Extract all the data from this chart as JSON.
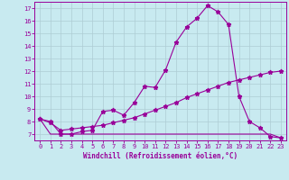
{
  "xlabel": "Windchill (Refroidissement éolien,°C)",
  "bg_color": "#c8eaf0",
  "grid_color": "#aeccd4",
  "line_color": "#990099",
  "xlim": [
    -0.5,
    23.5
  ],
  "ylim": [
    6.5,
    17.5
  ],
  "xticks": [
    0,
    1,
    2,
    3,
    4,
    5,
    6,
    7,
    8,
    9,
    10,
    11,
    12,
    13,
    14,
    15,
    16,
    17,
    18,
    19,
    20,
    21,
    22,
    23
  ],
  "yticks": [
    7,
    8,
    9,
    10,
    11,
    12,
    13,
    14,
    15,
    16,
    17
  ],
  "series1_x": [
    0,
    1,
    2,
    3,
    4,
    5,
    6,
    7,
    8,
    9,
    10,
    11,
    12,
    13,
    14,
    15,
    16,
    17,
    18,
    19,
    20,
    21,
    22,
    23
  ],
  "series1_y": [
    8.2,
    8.0,
    7.0,
    7.0,
    7.2,
    7.3,
    8.8,
    8.9,
    8.5,
    9.5,
    10.8,
    10.7,
    12.1,
    14.3,
    15.5,
    16.2,
    17.2,
    16.7,
    15.7,
    10.0,
    8.0,
    7.5,
    6.8,
    6.7
  ],
  "series2_x": [
    0,
    1,
    2,
    3,
    4,
    5,
    6,
    7,
    8,
    9,
    10,
    11,
    12,
    13,
    14,
    15,
    16,
    17,
    18,
    19,
    20,
    21,
    22,
    23
  ],
  "series2_y": [
    8.2,
    7.9,
    7.3,
    7.4,
    7.5,
    7.6,
    7.7,
    7.9,
    8.1,
    8.3,
    8.6,
    8.9,
    9.2,
    9.5,
    9.9,
    10.2,
    10.5,
    10.8,
    11.1,
    11.3,
    11.5,
    11.7,
    11.9,
    12.0
  ],
  "series3_x": [
    0,
    1,
    2,
    3,
    4,
    5,
    6,
    7,
    8,
    9,
    10,
    11,
    12,
    13,
    14,
    15,
    16,
    17,
    18,
    19,
    20,
    21,
    22,
    23
  ],
  "series3_y": [
    8.2,
    7.0,
    7.0,
    7.0,
    7.0,
    7.0,
    7.0,
    7.0,
    7.0,
    7.0,
    7.0,
    7.0,
    7.0,
    7.0,
    7.0,
    7.0,
    7.0,
    7.0,
    7.0,
    7.0,
    7.0,
    7.0,
    7.0,
    6.7
  ],
  "marker": "*",
  "markersize": 3.5,
  "linewidth": 0.8,
  "tick_fontsize": 5,
  "xlabel_fontsize": 5.5
}
